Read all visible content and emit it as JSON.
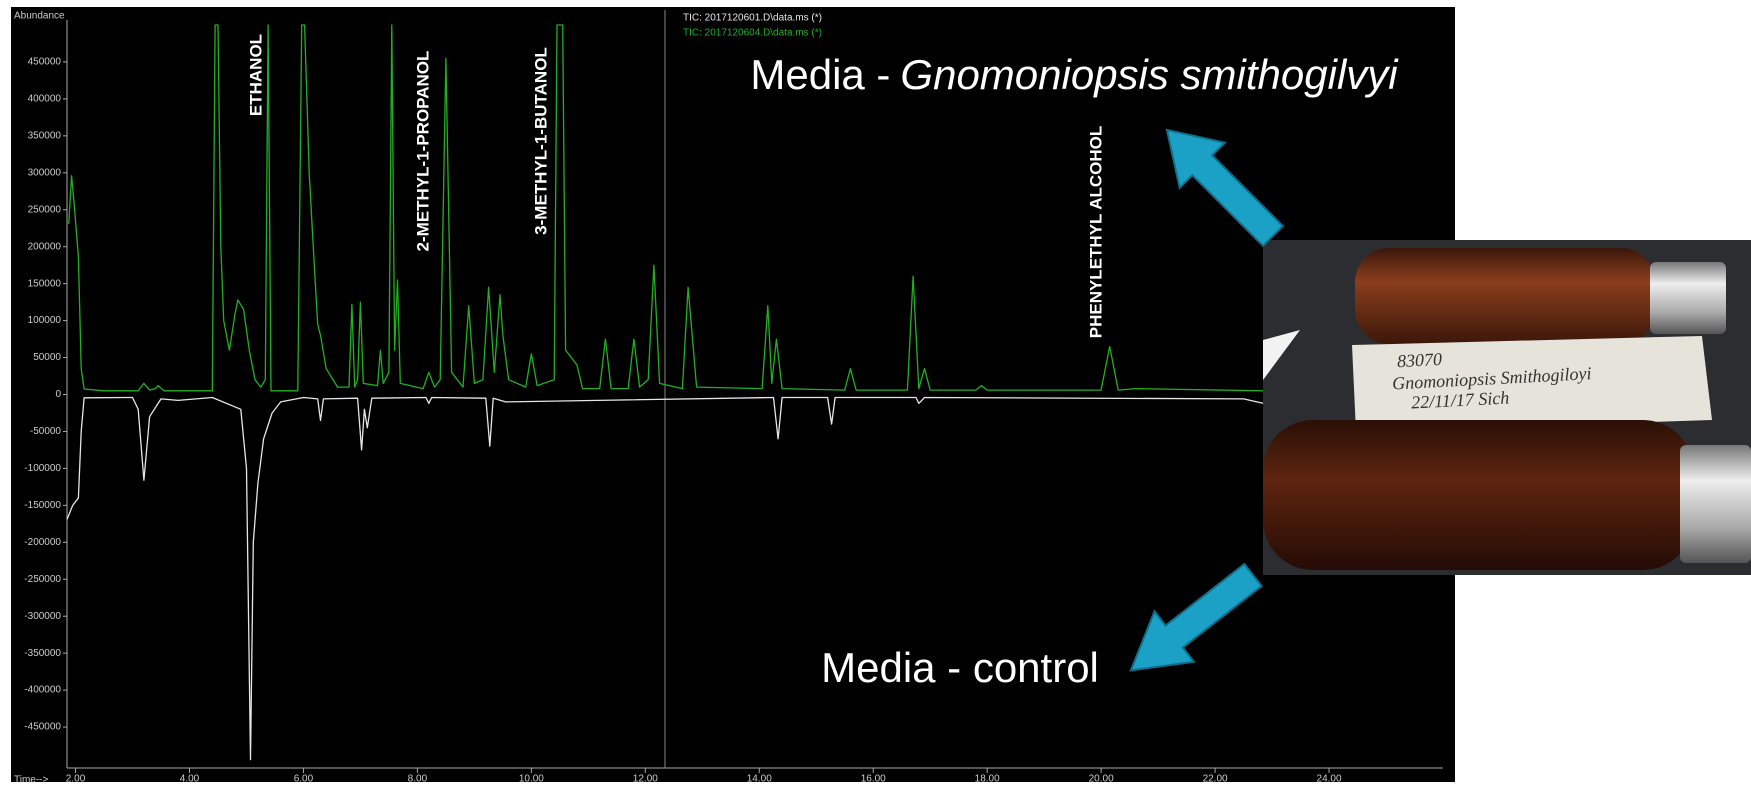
{
  "chart_data": {
    "type": "line",
    "y_label": "Abundance",
    "x_label": "Time-->",
    "xlim": [
      1.85,
      26
    ],
    "ylim": [
      -500000,
      500000
    ],
    "xticks": [
      {
        "value": 2,
        "label": "2.00"
      },
      {
        "value": 4,
        "label": "4.00"
      },
      {
        "value": 6,
        "label": "6.00"
      },
      {
        "value": 8,
        "label": "8.00"
      },
      {
        "value": 10,
        "label": "10.00"
      },
      {
        "value": 12,
        "label": "12.00"
      },
      {
        "value": 14,
        "label": "14.00"
      },
      {
        "value": 16,
        "label": "16.00"
      },
      {
        "value": 18,
        "label": "18.00"
      },
      {
        "value": 20,
        "label": "20.00"
      },
      {
        "value": 22,
        "label": "22.00"
      },
      {
        "value": 24,
        "label": "24.00"
      }
    ],
    "yticks": [
      -450000,
      -400000,
      -350000,
      -300000,
      -250000,
      -200000,
      -150000,
      -100000,
      -50000,
      0,
      50000,
      100000,
      150000,
      200000,
      250000,
      300000,
      350000,
      400000,
      450000
    ],
    "series": [
      {
        "name": "TIC: 2017120601.D\\data.ms (*)",
        "color": "#e6e6e6",
        "x": [
          1.85,
          1.95,
          2.05,
          2.1,
          2.15,
          3.0,
          3.1,
          3.2,
          3.3,
          3.5,
          3.8,
          4.4,
          4.9,
          5.0,
          5.07,
          5.12,
          5.2,
          5.3,
          5.45,
          5.6,
          6.0,
          6.25,
          6.3,
          6.35,
          6.95,
          7.02,
          7.07,
          7.12,
          7.2,
          8.15,
          8.2,
          8.25,
          9.2,
          9.27,
          9.33,
          9.55,
          14.25,
          14.33,
          14.4,
          15.2,
          15.27,
          15.33,
          16.75,
          16.8,
          16.9,
          22.5,
          22.85
        ],
        "values": [
          -169000,
          -150000,
          -140000,
          -50000,
          -4500,
          -4000,
          -20000,
          -116000,
          -30000,
          -6000,
          -8000,
          -4000,
          -20000,
          -100000,
          -494000,
          -200000,
          -120000,
          -60000,
          -25000,
          -10000,
          -4000,
          -6000,
          -35000,
          -6000,
          -5000,
          -75000,
          -20000,
          -45000,
          -5000,
          -4000,
          -12000,
          -4000,
          -5000,
          -70000,
          -5000,
          -10000,
          -4000,
          -60000,
          -4000,
          -4000,
          -40000,
          -4000,
          -4000,
          -12000,
          -4000,
          -6000,
          -12000
        ]
      },
      {
        "name": "TIC: 2017120604.D\\data.ms (*)",
        "color": "#22b022",
        "x": [
          1.88,
          1.93,
          1.98,
          2.05,
          2.1,
          2.15,
          2.5,
          3.1,
          3.2,
          3.3,
          3.4,
          3.45,
          3.55,
          4.4,
          4.45,
          4.5,
          4.55,
          4.6,
          4.7,
          4.8,
          4.85,
          4.95,
          5.05,
          5.15,
          5.25,
          5.33,
          5.38,
          5.43,
          5.5,
          5.9,
          5.97,
          6.02,
          6.1,
          6.2,
          6.25,
          6.3,
          6.4,
          6.6,
          6.8,
          6.85,
          6.9,
          6.95,
          7.0,
          7.05,
          7.3,
          7.35,
          7.4,
          7.5,
          7.55,
          7.6,
          7.65,
          7.7,
          8.1,
          8.2,
          8.3,
          8.4,
          8.5,
          8.6,
          8.8,
          8.9,
          9.0,
          9.15,
          9.25,
          9.35,
          9.45,
          9.5,
          9.6,
          9.9,
          10.0,
          10.1,
          10.4,
          10.45,
          10.55,
          10.6,
          10.8,
          10.9,
          11.2,
          11.3,
          11.4,
          11.7,
          11.8,
          11.9,
          12.05,
          12.15,
          12.25,
          12.65,
          12.75,
          12.9,
          14.05,
          14.15,
          14.22,
          14.3,
          14.4,
          15.5,
          15.6,
          15.7,
          16.6,
          16.7,
          16.8,
          16.9,
          17.0,
          17.8,
          17.9,
          18.0,
          20.0,
          20.15,
          20.3,
          20.6,
          22.85
        ],
        "values": [
          231000,
          296000,
          254000,
          186000,
          35000,
          7500,
          5000,
          5000,
          15000,
          6000,
          8000,
          12000,
          5000,
          5000,
          500000,
          500000,
          200000,
          100000,
          60000,
          110000,
          128000,
          115000,
          60000,
          20000,
          10000,
          20000,
          500000,
          5000,
          5000,
          5000,
          500000,
          500000,
          300000,
          160000,
          95000,
          80000,
          35000,
          10000,
          10000,
          122000,
          10000,
          20000,
          125000,
          15000,
          12000,
          60000,
          15000,
          30000,
          500000,
          60000,
          155000,
          15000,
          8000,
          30000,
          10000,
          20000,
          455000,
          30000,
          10000,
          120000,
          15000,
          20000,
          145000,
          30000,
          135000,
          80000,
          20000,
          10000,
          55000,
          12000,
          20000,
          500000,
          500000,
          60000,
          40000,
          8000,
          8000,
          75000,
          8000,
          8000,
          75000,
          10000,
          20000,
          175000,
          15000,
          8000,
          145000,
          10000,
          8000,
          120000,
          15000,
          75000,
          8000,
          6000,
          35000,
          6000,
          6000,
          160000,
          8000,
          35000,
          6000,
          6000,
          12000,
          6000,
          6000,
          65000,
          6000,
          8000,
          5000
        ]
      }
    ],
    "peak_labels": [
      "ETHANOL",
      "2-METHYL-1-PROPANOL",
      "3-METHYL-1-BUTANOL",
      "PHENYLETHYL ALCOHOL"
    ]
  },
  "annotations": {
    "sample": {
      "prefix": "Media -",
      "species": "Gnomoniopsis smithogilvyi"
    },
    "control": "Media - control"
  },
  "photo": {
    "label_lines": [
      "83070",
      "Gnomoniopsis Smithogiloyi",
      "22/11/17  Sich"
    ]
  }
}
